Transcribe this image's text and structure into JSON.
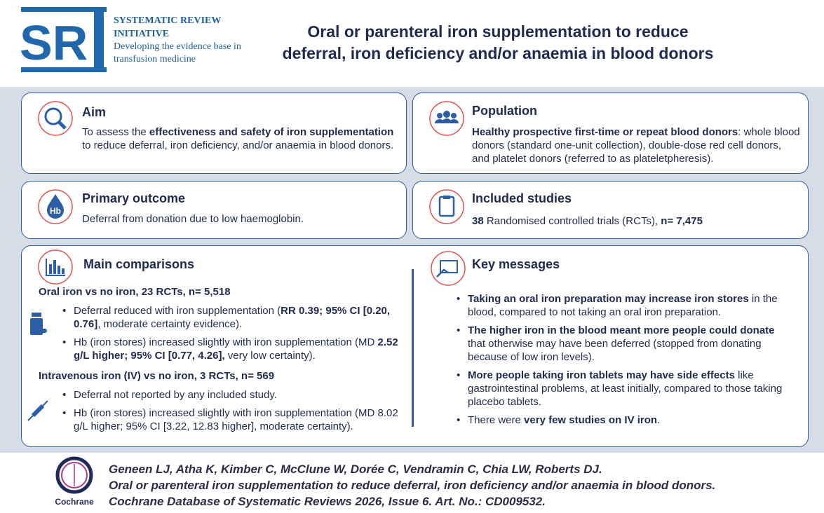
{
  "header": {
    "logo_letters": "SR",
    "logo_name": "SYSTEMATIC REVIEW INITIATIVE",
    "logo_tagline": "Developing the evidence base in transfusion medicine",
    "title": "Oral or parenteral iron supplementation to reduce deferral, iron deficiency and/or anaemia in blood donors"
  },
  "aim": {
    "title": "Aim",
    "body": [
      {
        "text": "To assess the "
      },
      {
        "text": "effectiveness and safety of iron supplementation",
        "bold": true
      },
      {
        "text": " to reduce deferral, iron deficiency, and/or anaemia in blood donors."
      }
    ]
  },
  "population": {
    "title": "Population",
    "body": [
      {
        "text": "Healthy prospective first-time or repeat blood donors",
        "bold": true
      },
      {
        "text": ": whole blood donors (standard one-unit collection), double-dose red cell donors, and platelet donors (referred to as plateletpheresis)."
      }
    ]
  },
  "primary_outcome": {
    "title": "Primary outcome",
    "icon_label": "Hb",
    "body": [
      {
        "text": "Deferral from donation due to low haemoglobin."
      }
    ]
  },
  "included_studies": {
    "title": "Included studies",
    "body": [
      {
        "text": "38",
        "bold": true
      },
      {
        "text": " Randomised controlled trials (RCTs), "
      },
      {
        "text": "n= 7,475",
        "bold": true
      }
    ]
  },
  "main_comparisons": {
    "title": "Main comparisons",
    "groups": [
      {
        "heading": "Oral iron vs no iron, 23 RCTs, n= 5,518",
        "items": [
          [
            {
              "text": "Deferral reduced with iron supplementation ("
            },
            {
              "text": "RR 0.39; 95% CI [0.20, 0.76]",
              "bold": true
            },
            {
              "text": ", moderate certainty evidence)."
            }
          ],
          [
            {
              "text": "Hb (iron stores) increased slightly with iron supplementation (MD "
            },
            {
              "text": "2.52 g/L higher; 95% CI [0.77, 4.26],",
              "bold": true
            },
            {
              "text": " very low certainty)."
            }
          ]
        ]
      },
      {
        "heading": "Intravenous iron (IV) vs no iron, 3 RCTs, n= 569",
        "items": [
          [
            {
              "text": "Deferral not reported by any included study."
            }
          ],
          [
            {
              "text": "Hb (iron stores) increased slightly with iron supplementation (MD 8.02 g/L higher; 95% CI [3.22, 12.83 higher], moderate certainty)."
            }
          ]
        ]
      }
    ]
  },
  "key_messages": {
    "title": "Key messages",
    "items": [
      [
        {
          "text": "Taking an oral iron preparation may increase iron stores",
          "bold": true
        },
        {
          "text": " in the blood, compared to not taking an oral iron preparation."
        }
      ],
      [
        {
          "text": "The higher iron in the blood meant more people could donate",
          "bold": true
        },
        {
          "text": " that otherwise may have been deferred (stopped from donating because of low iron levels)."
        }
      ],
      [
        {
          "text": "More people taking iron tablets may have side effects",
          "bold": true
        },
        {
          "text": " like gastrointestinal problems, at least initially, compared to those taking placebo tablets."
        }
      ],
      [
        {
          "text": "There were "
        },
        {
          "text": "very few studies on IV iron",
          "bold": true
        },
        {
          "text": "."
        }
      ]
    ]
  },
  "footer": {
    "logo_label": "Cochrane",
    "authors": "Geneen LJ, Atha K, Kimber C, McClune W, Dorée C, Vendramin C, Chia LW, Roberts DJ.",
    "review_title": "Oral or parenteral iron supplementation to reduce deferral, iron deficiency and/or anaemia in blood donors.",
    "citation": "Cochrane Database of Systematic Reviews 2026, Issue 6. Art. No.: CD009532."
  }
}
